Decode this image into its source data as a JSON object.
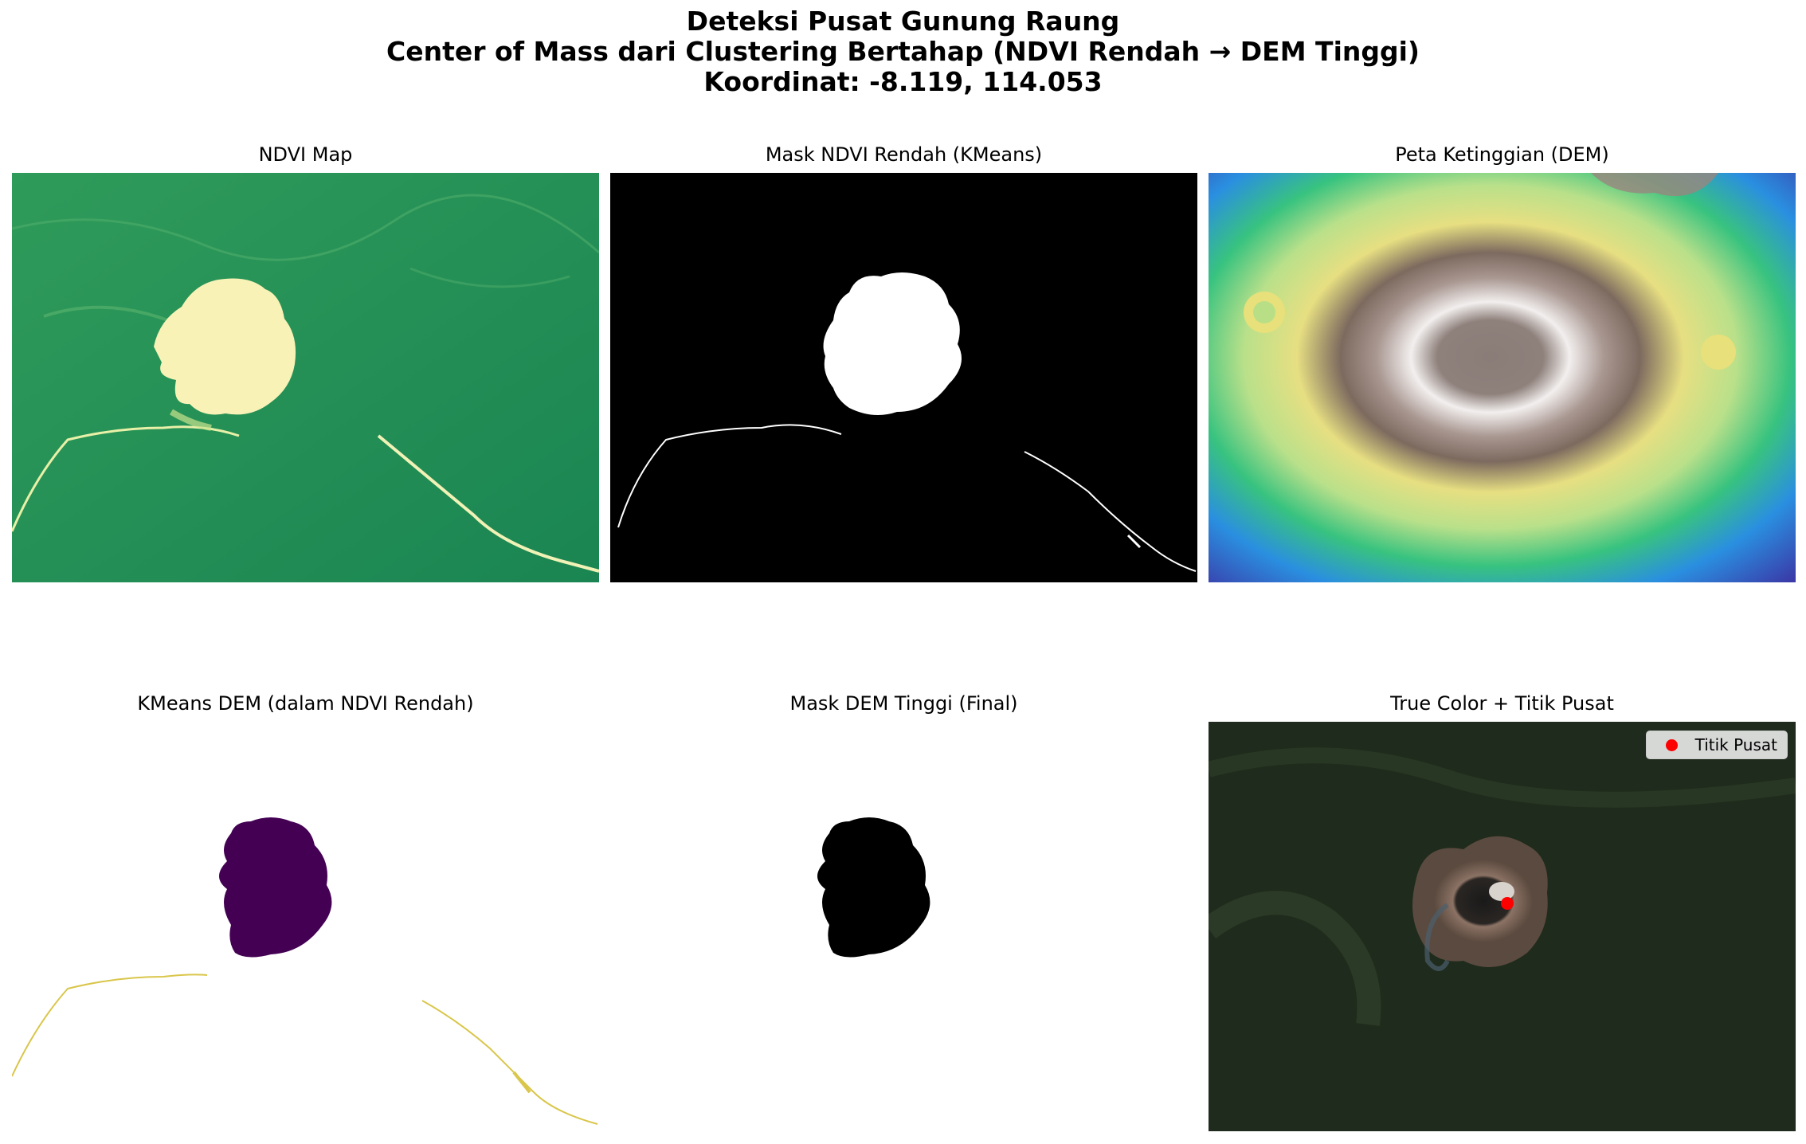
{
  "figure": {
    "title_line1": "Deteksi Pusat Gunung Raung",
    "title_line2": "Center of Mass dari Clustering Bertahap (NDVI Rendah → DEM Tinggi)",
    "title_line3": "Koordinat: -8.119, 114.053"
  },
  "panels": [
    {
      "title": "NDVI Map",
      "colormap": "YlGn-like",
      "colors": {
        "vegetation": "#1e8a52",
        "bare": "#f9f1b4"
      }
    },
    {
      "title": "Mask NDVI Rendah (KMeans)",
      "colors": {
        "background": "#000000",
        "mask": "#ffffff"
      }
    },
    {
      "title": "Peta Ketinggian (DEM)",
      "colormap": "terrain",
      "colors": {
        "low": "#2b6fd6",
        "mid": "#e8e07a",
        "high": "#7b6b64"
      }
    },
    {
      "title": "KMeans DEM (dalam NDVI Rendah)",
      "colors": {
        "cluster_high": "#440154",
        "cluster_low": "#d9c64a",
        "background": "#ffffff"
      }
    },
    {
      "title": "Mask DEM Tinggi (Final)",
      "colors": {
        "background": "#ffffff",
        "mask": "#000000"
      }
    },
    {
      "title": "True Color + Titik Pusat",
      "legend_label": "Titik Pusat",
      "colors": {
        "point": "#ff0000"
      }
    }
  ]
}
